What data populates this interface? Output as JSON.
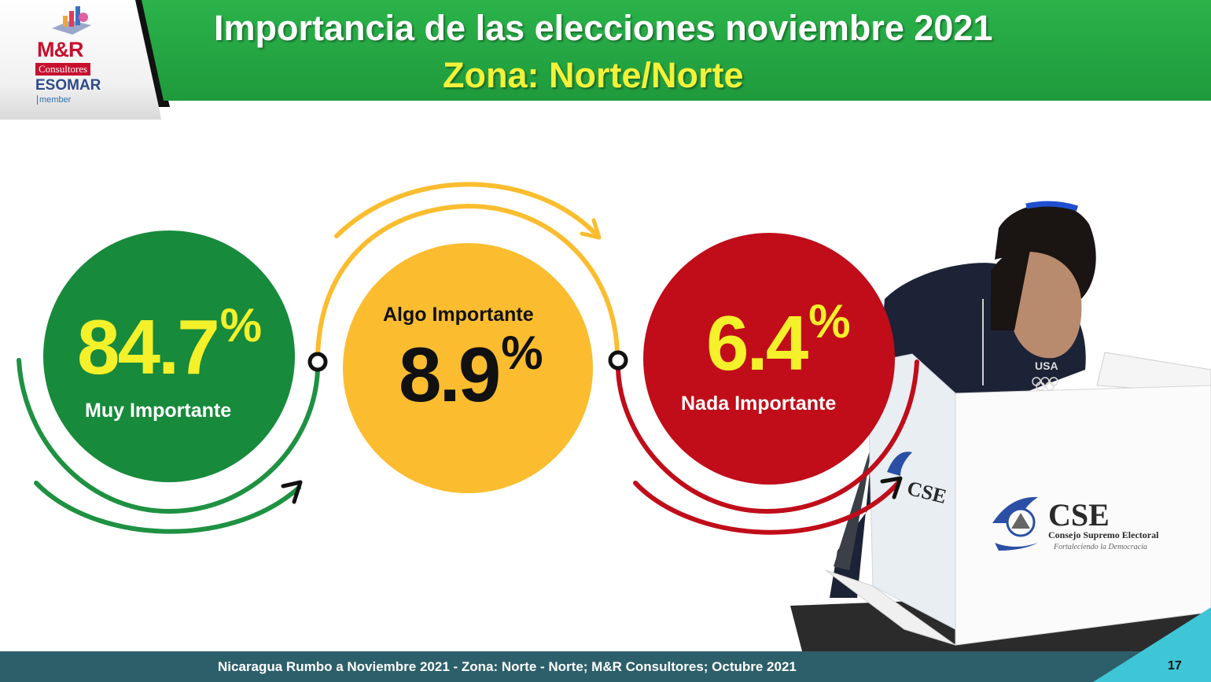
{
  "header": {
    "title": "Importancia de las elecciones noviembre 2021",
    "subtitle": "Zona: Norte/Norte",
    "logo": {
      "brand": "M&R",
      "consultores": "Consultores",
      "esomar": "ESOMAR",
      "member": "member"
    }
  },
  "results": [
    {
      "label": "Muy Importante",
      "value": "84.7",
      "unit": "%",
      "color": "#178a3c"
    },
    {
      "label": "Algo Importante",
      "value": "8.9",
      "unit": "%",
      "color": "#fbbd2f"
    },
    {
      "label": "Nada Importante",
      "value": "6.4",
      "unit": "%",
      "color": "#c00d19"
    }
  ],
  "photo": {
    "box_brand": "CSE",
    "box_name": "Consejo Supremo Electoral",
    "box_tagline": "Fortaleciendo la Democracia",
    "side_brand": "CSE",
    "shirt_text": "USA"
  },
  "footer": {
    "text": "Nicaragua Rumbo a Noviembre 2021 - Zona: Norte - Norte; M&R Consultores; Octubre 2021",
    "page_number": "17"
  }
}
